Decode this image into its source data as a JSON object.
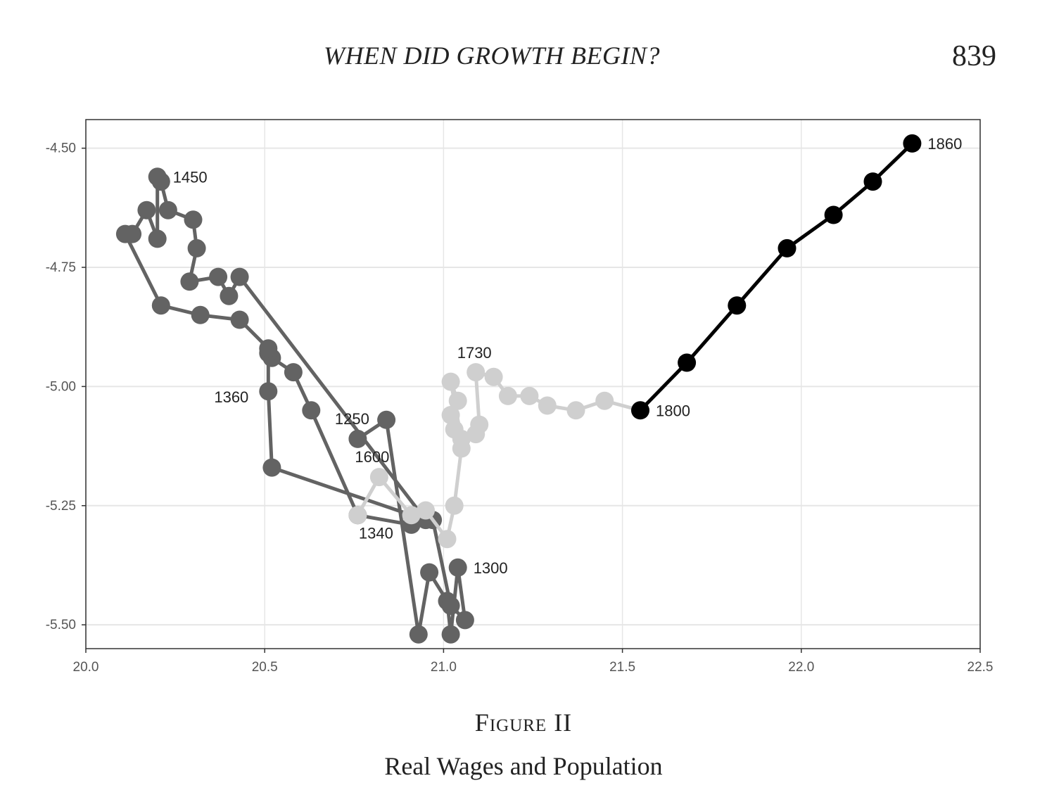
{
  "header": {
    "running_title": "WHEN DID GROWTH BEGIN?",
    "page_number": "839"
  },
  "figure": {
    "label": "Figure II",
    "caption": "Real Wages and Population"
  },
  "colors": {
    "early": "#636363",
    "middle": "#cfcfcf",
    "late": "#000000",
    "grid": "#e6e6e6",
    "axis_text": "#555555",
    "annotation_text": "#222222"
  },
  "chart_data": {
    "type": "line",
    "title": "",
    "xlabel": "",
    "ylabel": "",
    "xlim": [
      20.0,
      22.5
    ],
    "ylim": [
      -5.55,
      -4.44
    ],
    "x_ticks": [
      "20.0",
      "20.5",
      "21.0",
      "21.5",
      "22.0",
      "22.5"
    ],
    "y_ticks": [
      "-4.50",
      "-4.75",
      "-5.00",
      "-5.25",
      "-5.50"
    ],
    "grid": true,
    "legend": "none",
    "series": [
      {
        "color_key": "early",
        "points": [
          [
            20.76,
            -5.11
          ],
          [
            20.84,
            -5.07
          ],
          [
            20.93,
            -5.52
          ],
          [
            20.96,
            -5.39
          ],
          [
            21.01,
            -5.45
          ],
          [
            21.02,
            -5.52
          ],
          [
            21.04,
            -5.38
          ],
          [
            21.06,
            -5.49
          ],
          [
            21.02,
            -5.46
          ],
          [
            20.97,
            -5.28
          ],
          [
            20.91,
            -5.29
          ],
          [
            20.76,
            -5.27
          ],
          [
            20.63,
            -5.05
          ],
          [
            20.58,
            -4.97
          ],
          [
            20.52,
            -4.94
          ],
          [
            20.51,
            -4.93
          ],
          [
            20.51,
            -5.01
          ],
          [
            20.52,
            -5.17
          ],
          [
            20.95,
            -5.28
          ],
          [
            20.43,
            -4.77
          ],
          [
            20.4,
            -4.81
          ],
          [
            20.37,
            -4.77
          ],
          [
            20.29,
            -4.78
          ],
          [
            20.31,
            -4.71
          ],
          [
            20.3,
            -4.65
          ],
          [
            20.23,
            -4.63
          ],
          [
            20.21,
            -4.57
          ],
          [
            20.2,
            -4.56
          ],
          [
            20.2,
            -4.69
          ],
          [
            20.17,
            -4.63
          ],
          [
            20.13,
            -4.68
          ],
          [
            20.11,
            -4.68
          ],
          [
            20.21,
            -4.83
          ],
          [
            20.32,
            -4.85
          ],
          [
            20.43,
            -4.86
          ],
          [
            20.51,
            -4.92
          ]
        ]
      },
      {
        "color_key": "middle",
        "points": [
          [
            20.76,
            -5.27
          ],
          [
            20.82,
            -5.19
          ],
          [
            20.91,
            -5.27
          ],
          [
            20.95,
            -5.26
          ],
          [
            21.01,
            -5.32
          ],
          [
            21.03,
            -5.25
          ],
          [
            21.05,
            -5.13
          ],
          [
            21.03,
            -5.09
          ],
          [
            21.02,
            -5.06
          ],
          [
            21.04,
            -5.03
          ],
          [
            21.02,
            -4.99
          ],
          [
            21.05,
            -5.11
          ],
          [
            21.09,
            -5.1
          ],
          [
            21.1,
            -5.08
          ],
          [
            21.09,
            -4.97
          ],
          [
            21.14,
            -4.98
          ],
          [
            21.18,
            -5.02
          ],
          [
            21.24,
            -5.02
          ],
          [
            21.29,
            -5.04
          ],
          [
            21.37,
            -5.05
          ],
          [
            21.45,
            -5.03
          ],
          [
            21.55,
            -5.05
          ]
        ]
      },
      {
        "color_key": "late",
        "points": [
          [
            21.55,
            -5.05
          ],
          [
            21.68,
            -4.95
          ],
          [
            21.82,
            -4.83
          ],
          [
            21.96,
            -4.71
          ],
          [
            22.09,
            -4.64
          ],
          [
            22.2,
            -4.57
          ],
          [
            22.31,
            -4.49
          ]
        ]
      }
    ],
    "annotations": [
      {
        "text": "1860",
        "x": 22.31,
        "y": -4.49,
        "anchor": "start"
      },
      {
        "text": "1450",
        "x": 20.2,
        "y": -4.56,
        "anchor": "start"
      },
      {
        "text": "1730",
        "x": 21.09,
        "y": -4.97,
        "anchor": "middle-above"
      },
      {
        "text": "1360",
        "x": 20.51,
        "y": -5.01,
        "anchor": "end"
      },
      {
        "text": "1800",
        "x": 21.55,
        "y": -5.05,
        "anchor": "start"
      },
      {
        "text": "1250",
        "x": 20.76,
        "y": -5.11,
        "anchor": "above"
      },
      {
        "text": "1600",
        "x": 20.82,
        "y": -5.19,
        "anchor": "above-left"
      },
      {
        "text": "1340",
        "x": 20.76,
        "y": -5.27,
        "anchor": "below"
      },
      {
        "text": "1300",
        "x": 21.04,
        "y": -5.38,
        "anchor": "start"
      }
    ]
  }
}
